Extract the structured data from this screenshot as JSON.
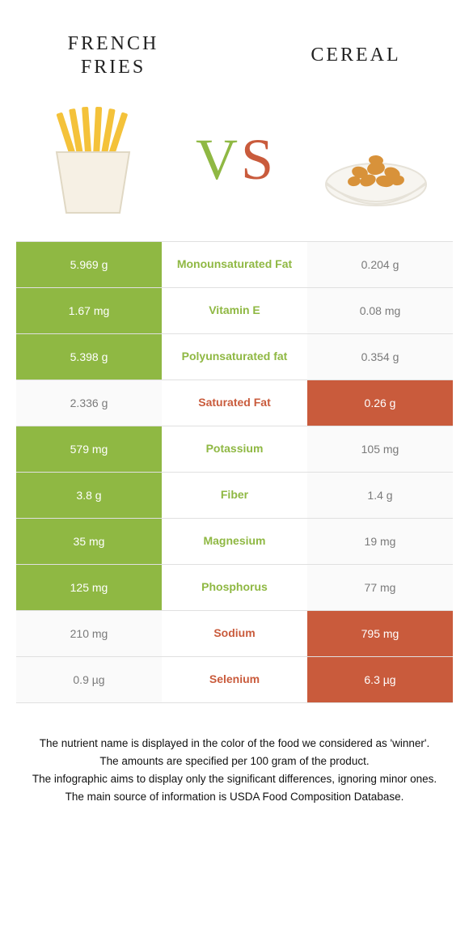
{
  "header": {
    "left_title": "FRENCH FRIES",
    "right_title": "CEREAL",
    "vs_v": "V",
    "vs_s": "S"
  },
  "colors": {
    "left_winner_bg": "#8fb843",
    "left_loser_bg": "#fafafa",
    "right_winner_bg": "#c95b3c",
    "right_loser_bg": "#fafafa",
    "mid_left_text": "#8fb843",
    "mid_right_text": "#c95b3c",
    "left_loser_text": "#7a7a7a",
    "right_loser_text": "#7a7a7a",
    "vs_v_color": "#8fb843",
    "vs_s_color": "#c95b3c"
  },
  "table": {
    "rows": [
      {
        "left": "5.969 g",
        "label": "Monounsaturated Fat",
        "right": "0.204 g",
        "winner": "left"
      },
      {
        "left": "1.67 mg",
        "label": "Vitamin E",
        "right": "0.08 mg",
        "winner": "left"
      },
      {
        "left": "5.398 g",
        "label": "Polyunsaturated fat",
        "right": "0.354 g",
        "winner": "left"
      },
      {
        "left": "2.336 g",
        "label": "Saturated Fat",
        "right": "0.26 g",
        "winner": "right"
      },
      {
        "left": "579 mg",
        "label": "Potassium",
        "right": "105 mg",
        "winner": "left"
      },
      {
        "left": "3.8 g",
        "label": "Fiber",
        "right": "1.4 g",
        "winner": "left"
      },
      {
        "left": "35 mg",
        "label": "Magnesium",
        "right": "19 mg",
        "winner": "left"
      },
      {
        "left": "125 mg",
        "label": "Phosphorus",
        "right": "77 mg",
        "winner": "left"
      },
      {
        "left": "210 mg",
        "label": "Sodium",
        "right": "795 mg",
        "winner": "right"
      },
      {
        "left": "0.9 µg",
        "label": "Selenium",
        "right": "6.3 µg",
        "winner": "right"
      }
    ]
  },
  "footnotes": {
    "lines": [
      "The nutrient name is displayed in the color of the food we considered as 'winner'.",
      "The amounts are specified per 100 gram of the product.",
      "The infographic aims to display only the significant differences, ignoring minor ones.",
      "The main source of information is USDA Food Composition Database."
    ]
  }
}
